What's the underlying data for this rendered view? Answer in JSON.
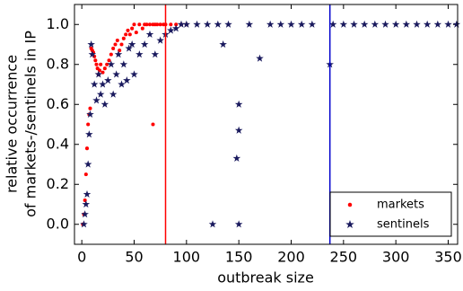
{
  "chart_data": {
    "type": "scatter",
    "xlabel": "outbreak size",
    "ylabel": [
      "relative occurrence",
      "of markets-/sentinels in IP"
    ],
    "xlim": [
      -7,
      359
    ],
    "ylim": [
      -0.1,
      1.1
    ],
    "xticks": [
      0,
      50,
      100,
      150,
      200,
      250,
      300,
      350
    ],
    "yticks": [
      {
        "value": 0,
        "label": "0.0"
      },
      {
        "value": 0.2,
        "label": "0.2"
      },
      {
        "value": 0.4,
        "label": "0.4"
      },
      {
        "value": 0.6,
        "label": "0.6"
      },
      {
        "value": 0.8,
        "label": "0.8"
      },
      {
        "value": 1,
        "label": "1.0"
      }
    ],
    "legend": "lower right",
    "reference_lines": [
      {
        "x": 80,
        "color": "#ff0000"
      },
      {
        "x": 237,
        "color": "#0000cc"
      }
    ],
    "series": [
      {
        "name": "markets",
        "color": "#ff0000",
        "marker": "dot",
        "x": [
          1,
          2,
          3,
          4,
          5,
          6,
          7,
          8,
          9,
          10,
          11,
          12,
          13,
          14,
          15,
          16,
          17,
          18,
          20,
          22,
          24,
          26,
          28,
          30,
          32,
          34,
          36,
          38,
          40,
          42,
          44,
          46,
          48,
          50,
          52,
          55,
          58,
          60,
          62,
          65,
          68,
          70,
          72,
          75,
          78,
          80,
          85,
          90,
          95,
          100,
          68
        ],
        "values": [
          0.0,
          0.05,
          0.12,
          0.25,
          0.38,
          0.5,
          0.55,
          0.58,
          0.88,
          0.87,
          0.86,
          0.84,
          0.82,
          0.8,
          0.78,
          0.75,
          0.77,
          0.8,
          0.76,
          0.78,
          0.8,
          0.82,
          0.85,
          0.88,
          0.9,
          0.92,
          0.87,
          0.9,
          0.93,
          0.95,
          0.97,
          0.95,
          0.98,
          1.0,
          0.96,
          1.0,
          0.98,
          1.0,
          1.0,
          1.0,
          1.0,
          1.0,
          1.0,
          1.0,
          1.0,
          1.0,
          1.0,
          1.0,
          1.0,
          1.0,
          0.5
        ]
      },
      {
        "name": "sentinels",
        "color": "#1a1a5e",
        "marker": "star",
        "x": [
          2,
          3,
          4,
          5,
          6,
          7,
          8,
          9,
          10,
          12,
          14,
          16,
          18,
          20,
          22,
          25,
          28,
          30,
          33,
          35,
          38,
          40,
          43,
          45,
          48,
          50,
          55,
          60,
          65,
          70,
          75,
          80,
          85,
          90,
          95,
          100,
          110,
          120,
          125,
          130,
          135,
          140,
          148,
          150,
          150,
          150,
          160,
          170,
          180,
          190,
          200,
          210,
          220,
          237,
          240,
          250,
          260,
          270,
          280,
          290,
          300,
          310,
          320,
          330,
          340,
          350,
          358
        ],
        "values": [
          0.0,
          0.05,
          0.1,
          0.15,
          0.3,
          0.45,
          0.55,
          0.9,
          0.85,
          0.7,
          0.62,
          0.75,
          0.65,
          0.7,
          0.6,
          0.72,
          0.8,
          0.65,
          0.75,
          0.85,
          0.7,
          0.8,
          0.72,
          0.88,
          0.9,
          0.75,
          0.85,
          0.9,
          0.95,
          0.85,
          0.92,
          0.95,
          0.97,
          0.98,
          1.0,
          1.0,
          1.0,
          1.0,
          0.0,
          1.0,
          0.9,
          1.0,
          0.33,
          0.6,
          0.47,
          0.0,
          1.0,
          0.83,
          1.0,
          1.0,
          1.0,
          1.0,
          1.0,
          0.8,
          1.0,
          1.0,
          1.0,
          1.0,
          1.0,
          1.0,
          1.0,
          1.0,
          1.0,
          1.0,
          1.0,
          1.0,
          1.0
        ]
      }
    ]
  }
}
